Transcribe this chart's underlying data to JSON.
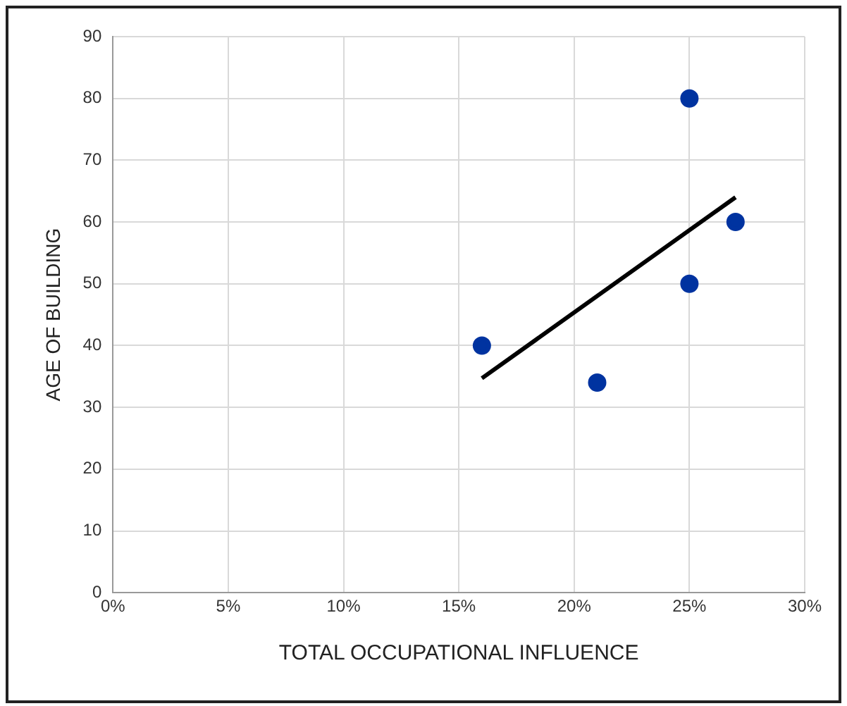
{
  "chart_data": {
    "type": "scatter",
    "xlabel": "TOTAL OCCUPATIONAL INFLUENCE",
    "ylabel": "AGE OF BUILDING",
    "xlim": [
      0,
      30
    ],
    "xticks": [
      {
        "value": 0,
        "label": "0%"
      },
      {
        "value": 5,
        "label": "5%"
      },
      {
        "value": 10,
        "label": "10%"
      },
      {
        "value": 15,
        "label": "15%"
      },
      {
        "value": 20,
        "label": "20%"
      },
      {
        "value": 25,
        "label": "25%"
      },
      {
        "value": 30,
        "label": "30%"
      }
    ],
    "ylim": [
      0,
      90
    ],
    "yticks": [
      0,
      10,
      20,
      30,
      40,
      50,
      60,
      70,
      80,
      90
    ],
    "grid": true,
    "marker": "circle",
    "series": [
      {
        "type": "scatter",
        "color": "#0033a0",
        "x": [
          16,
          21,
          25,
          25,
          27
        ],
        "values": [
          40,
          34,
          80,
          50,
          60
        ]
      },
      {
        "type": "line",
        "color": "#000000",
        "x": [
          16,
          27
        ],
        "values": [
          34.7,
          64
        ],
        "marker": "none",
        "line_style": "solid"
      }
    ]
  }
}
